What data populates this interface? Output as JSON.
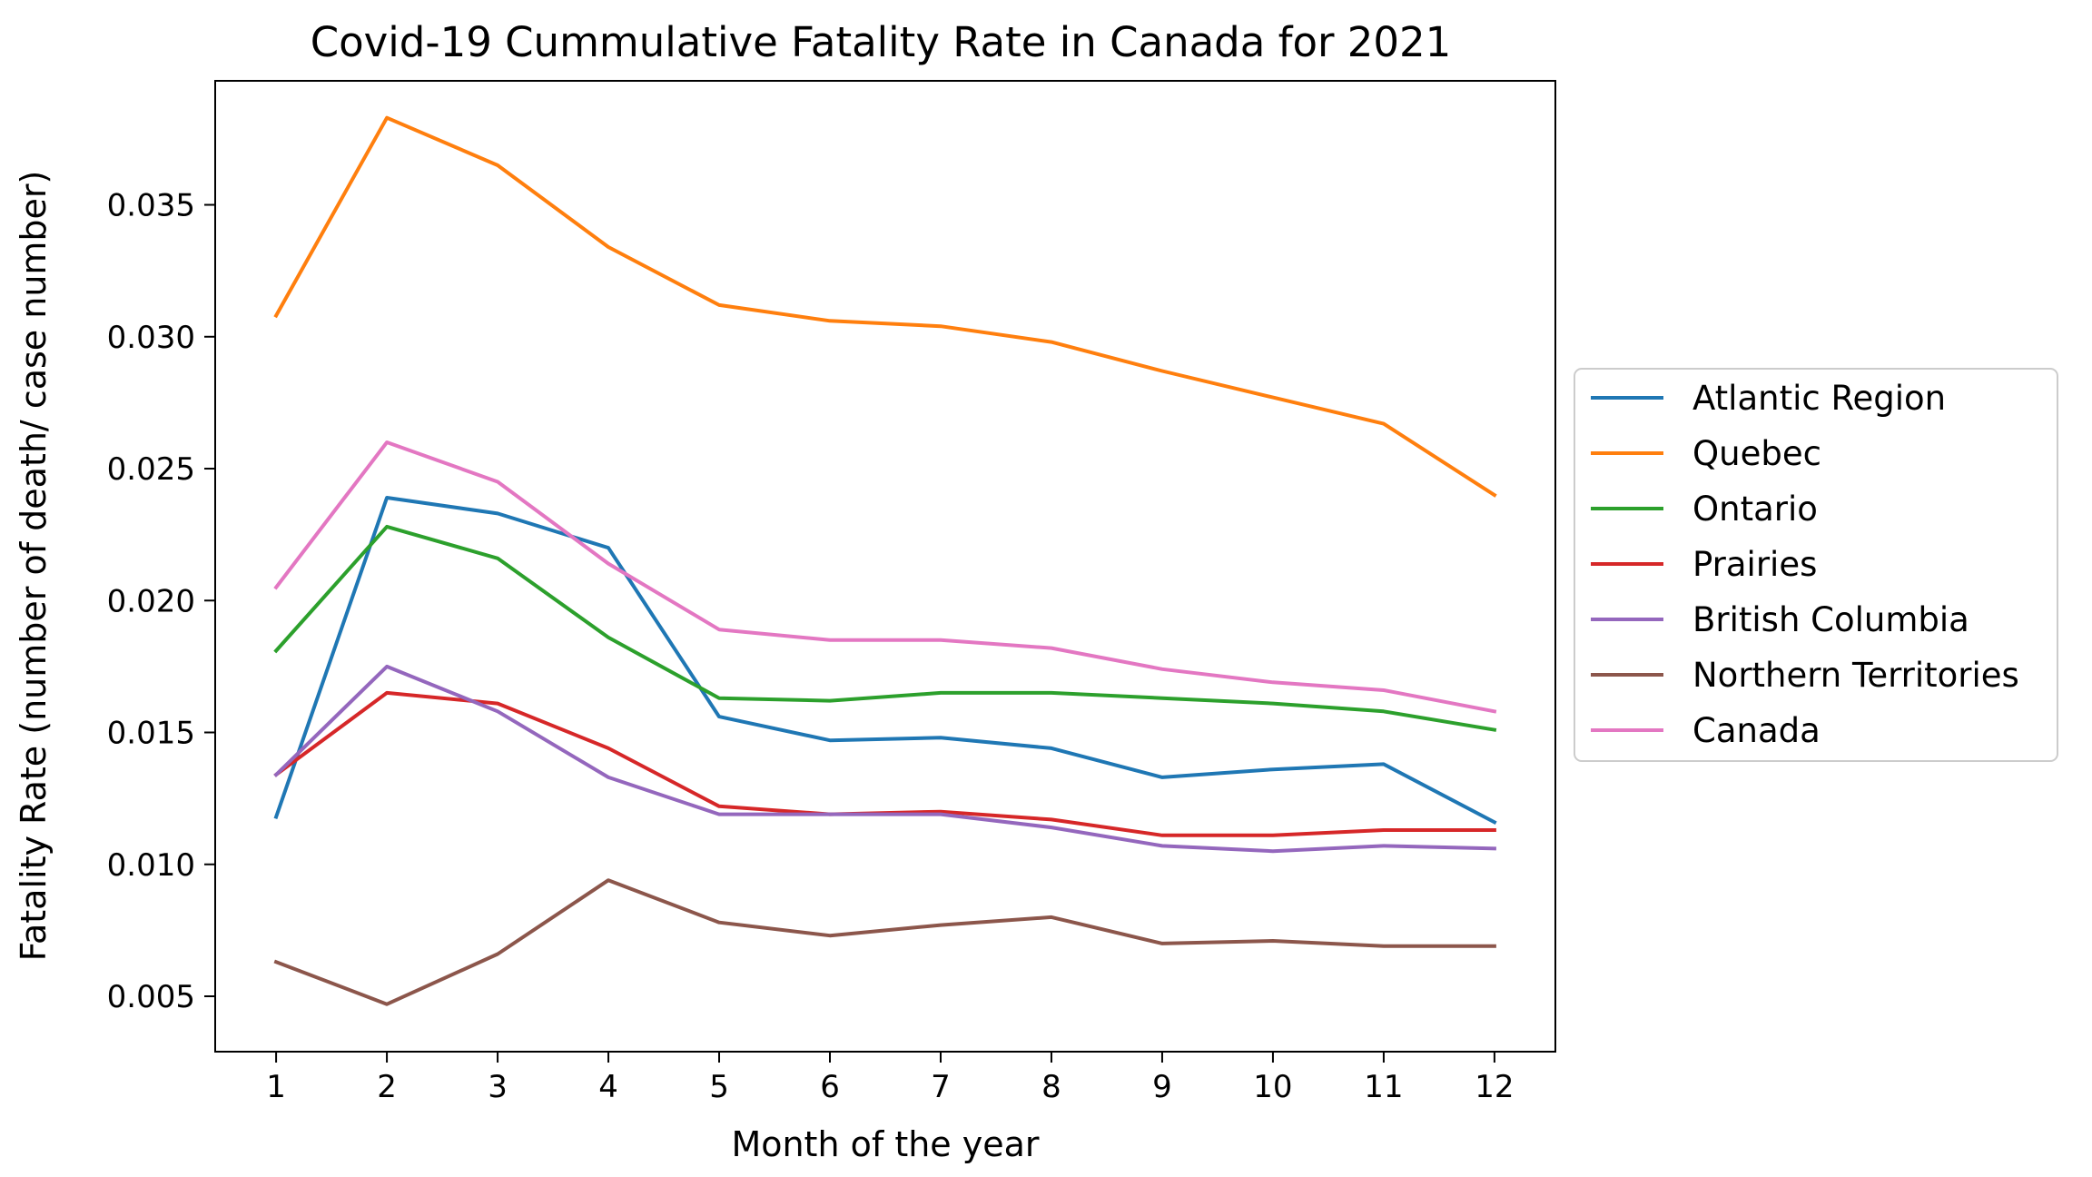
{
  "chart_data": {
    "type": "line",
    "title": "Covid-19 Cummulative Fatality Rate in Canada for 2021",
    "xlabel": "Month of the year",
    "ylabel": "Fatality Rate (number of death/ case number)",
    "x": [
      1,
      2,
      3,
      4,
      5,
      6,
      7,
      8,
      9,
      10,
      11,
      12
    ],
    "xlim": [
      0.45,
      12.55
    ],
    "ylim": [
      0.0029,
      0.0397
    ],
    "yticks": [
      "0.005",
      "0.010",
      "0.015",
      "0.020",
      "0.025",
      "0.030",
      "0.035"
    ],
    "grid": false,
    "legend_position": "center-right, outside plot",
    "series": [
      {
        "name": "Atlantic Region",
        "color": "#1f77b4",
        "values": [
          0.0118,
          0.0239,
          0.0233,
          0.022,
          0.0156,
          0.0147,
          0.0148,
          0.0144,
          0.0133,
          0.0136,
          0.0138,
          0.0116
        ]
      },
      {
        "name": "Quebec",
        "color": "#ff7f0e",
        "values": [
          0.0308,
          0.0383,
          0.0365,
          0.0334,
          0.0312,
          0.0306,
          0.0304,
          0.0298,
          0.0287,
          0.0277,
          0.0267,
          0.024
        ]
      },
      {
        "name": "Ontario",
        "color": "#2ca02c",
        "values": [
          0.0181,
          0.0228,
          0.0216,
          0.0186,
          0.0163,
          0.0162,
          0.0165,
          0.0165,
          0.0163,
          0.0161,
          0.0158,
          0.0151
        ]
      },
      {
        "name": "Prairies",
        "color": "#d62728",
        "values": [
          0.0134,
          0.0165,
          0.0161,
          0.0144,
          0.0122,
          0.0119,
          0.012,
          0.0117,
          0.0111,
          0.0111,
          0.0113,
          0.0113
        ]
      },
      {
        "name": "British Columbia",
        "color": "#9467bd",
        "values": [
          0.0134,
          0.0175,
          0.0158,
          0.0133,
          0.0119,
          0.0119,
          0.0119,
          0.0114,
          0.0107,
          0.0105,
          0.0107,
          0.0106
        ]
      },
      {
        "name": "Northern Territories",
        "color": "#8c564b",
        "values": [
          0.0063,
          0.0047,
          0.0066,
          0.0094,
          0.0078,
          0.0073,
          0.0077,
          0.008,
          0.007,
          0.0071,
          0.0069,
          0.0069
        ]
      },
      {
        "name": "Canada",
        "color": "#e377c2",
        "values": [
          0.0205,
          0.026,
          0.0245,
          0.0214,
          0.0189,
          0.0185,
          0.0185,
          0.0182,
          0.0174,
          0.0169,
          0.0166,
          0.0158
        ]
      }
    ]
  }
}
